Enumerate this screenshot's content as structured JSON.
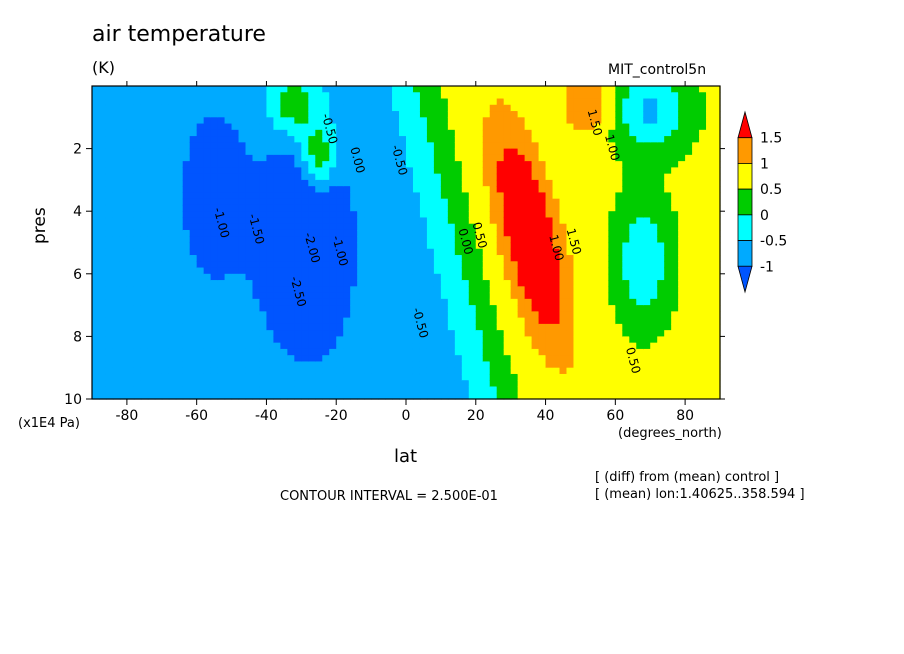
{
  "chart_data": {
    "type": "heatmap",
    "title": "air temperature",
    "units": "(K)",
    "dataset": "MIT_control5n",
    "xlabel": "lat",
    "ylabel": "pres",
    "x_unit": "(degrees_north)",
    "y_unit": "(x1E4 Pa)",
    "xlim": [
      -90,
      90
    ],
    "ylim": [
      10,
      0
    ],
    "x_ticks": [
      "-80",
      "-60",
      "-40",
      "-20",
      "0",
      "20",
      "40",
      "60",
      "80"
    ],
    "y_ticks": [
      "2",
      "4",
      "6",
      "8",
      "10"
    ],
    "contour_interval_text": "CONTOUR INTERVAL = 2.500E-01",
    "notes": [
      "[ (diff) from (mean) control ]",
      "[ (mean) lon:1.40625..358.594 ]"
    ],
    "colorbar": {
      "labels": [
        "1.5",
        "1",
        "0.5",
        "0",
        "-0.5",
        "-1"
      ],
      "bins": [
        {
          "min": 1.5,
          "color": "#ff0000"
        },
        {
          "min": 1.0,
          "max": 1.5,
          "color": "#ff9900"
        },
        {
          "min": 0.5,
          "max": 1.0,
          "color": "#ffff00"
        },
        {
          "min": 0.0,
          "max": 0.5,
          "color": "#00cc00"
        },
        {
          "min": -0.5,
          "max": 0.0,
          "color": "#00ffff"
        },
        {
          "min": -1.0,
          "max": -0.5,
          "color": "#00aaff"
        },
        {
          "max": -1.0,
          "color": "#0055ff"
        }
      ]
    },
    "contour_labels": [
      {
        "text": "-1.00",
        "lat": -54,
        "pres": 4.4
      },
      {
        "text": "-1.50",
        "lat": -44,
        "pres": 4.6
      },
      {
        "text": "-2.00",
        "lat": -28,
        "pres": 5.2
      },
      {
        "text": "-2.50",
        "lat": -32,
        "pres": 6.6
      },
      {
        "text": "-1.00",
        "lat": -20,
        "pres": 5.3
      },
      {
        "text": "-0.50",
        "lat": -23,
        "pres": 1.4
      },
      {
        "text": "0.00",
        "lat": -15,
        "pres": 2.4
      },
      {
        "text": "-0.50",
        "lat": -3,
        "pres": 2.4
      },
      {
        "text": "-0.50",
        "lat": 3,
        "pres": 7.6
      },
      {
        "text": "0.00",
        "lat": 16,
        "pres": 5.0
      },
      {
        "text": "0.50",
        "lat": 20,
        "pres": 4.8
      },
      {
        "text": "1.00",
        "lat": 42,
        "pres": 5.2
      },
      {
        "text": "1.50",
        "lat": 47,
        "pres": 5.0
      },
      {
        "text": "1.50",
        "lat": 53,
        "pres": 1.2
      },
      {
        "text": "1.00",
        "lat": 58,
        "pres": 2.0
      },
      {
        "text": "0.50",
        "lat": 64,
        "pres": 8.8
      }
    ]
  }
}
